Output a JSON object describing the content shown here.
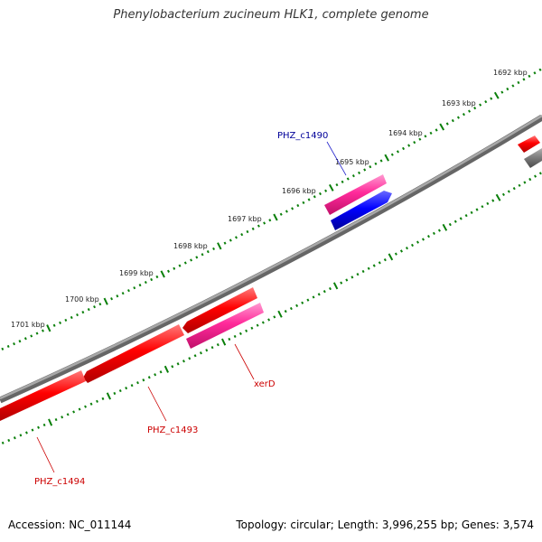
{
  "title": "Phenylobacterium zucineum HLK1, complete genome",
  "footer": {
    "accession": "Accession: NC_011144",
    "summary": "Topology: circular; Length: 3,996,255 bp; Genes: 3,574"
  },
  "ruler": {
    "tick_color": "#0a7f0a",
    "labels": [
      "1692 kbp",
      "1693 kbp",
      "1694 kbp",
      "1695 kbp",
      "1696 kbp",
      "1697 kbp",
      "1698 kbp",
      "1699 kbp",
      "1700 kbp",
      "1701 kbp"
    ]
  },
  "genes": [
    {
      "name": "PHZ_c1490",
      "strand": "forward",
      "color": "#0000ee"
    },
    {
      "name": "xerD",
      "strand": "reverse",
      "color": "#ff2a9a"
    },
    {
      "name": "PHZ_c1493",
      "strand": "reverse",
      "color": "#ee0000"
    },
    {
      "name": "PHZ_c1494",
      "strand": "reverse",
      "color": "#ee0000"
    }
  ],
  "colors": {
    "backbone": "#8a8a8a",
    "forward_gene": "#0000ee",
    "reverse_gene": "#ee0000",
    "pink_gene": "#ff2a9a",
    "label_blue": "#000099",
    "label_red": "#cc0000"
  }
}
